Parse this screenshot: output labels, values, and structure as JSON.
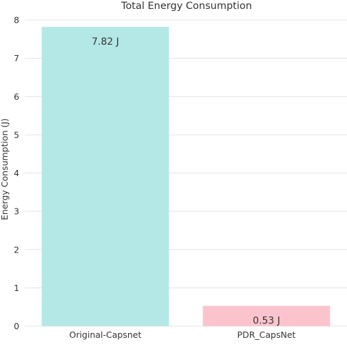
{
  "chart_data": {
    "type": "bar",
    "title": "Total Energy Consumption",
    "xlabel": "",
    "ylabel": "Energy Consumption (J)",
    "categories": [
      "Original-Capsnet",
      "PDR_CapsNet"
    ],
    "values": [
      7.82,
      0.53
    ],
    "data_labels": [
      "7.82 J",
      "0.53 J"
    ],
    "bar_colors": [
      "#b3e8e6",
      "#fbc4cd"
    ],
    "ylim": [
      0,
      8.2
    ],
    "yticks": [
      0,
      1,
      2,
      3,
      4,
      5,
      6,
      7,
      8
    ],
    "grid": true,
    "legend": "none"
  }
}
